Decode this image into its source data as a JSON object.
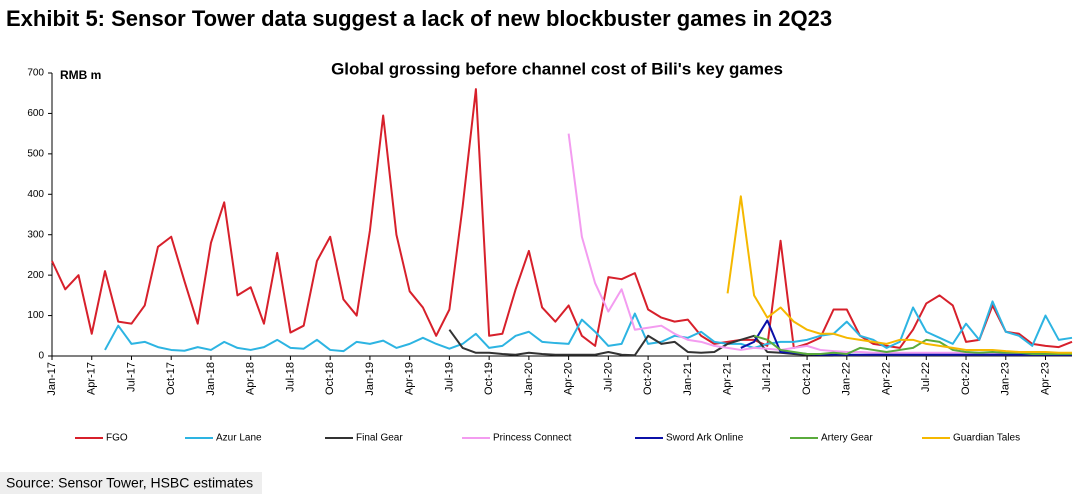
{
  "exhibit_title": "Exhibit 5: Sensor Tower data suggest a lack of new blockbuster games in 2Q23",
  "source": "Source: Sensor Tower, HSBC estimates",
  "chart_data": {
    "type": "line",
    "title": "Global grossing before channel cost  of Bili's key games",
    "y_label": "RMB m",
    "ylim": [
      0,
      700
    ],
    "yticks": [
      0,
      100,
      200,
      300,
      400,
      500,
      600,
      700
    ],
    "grid": false,
    "categories": [
      "Jan-17",
      null,
      null,
      "Apr-17",
      null,
      null,
      "Jul-17",
      null,
      null,
      "Oct-17",
      null,
      null,
      "Jan-18",
      null,
      null,
      "Apr-18",
      null,
      null,
      "Jul-18",
      null,
      null,
      "Oct-18",
      null,
      null,
      "Jan-19",
      null,
      null,
      "Apr-19",
      null,
      null,
      "Jul-19",
      null,
      null,
      "Oct-19",
      null,
      null,
      "Jan-20",
      null,
      null,
      "Apr-20",
      null,
      null,
      "Jul-20",
      null,
      null,
      "Oct-20",
      null,
      null,
      "Jan-21",
      null,
      null,
      "Apr-21",
      null,
      null,
      "Jul-21",
      null,
      null,
      "Oct-21",
      null,
      null,
      "Jan-22",
      null,
      null,
      "Apr-22",
      null,
      null,
      "Jul-22",
      null,
      null,
      "Oct-22",
      null,
      null,
      "Jan-23",
      null,
      null,
      "Apr-23",
      null,
      null
    ],
    "series": [
      {
        "name": "FGO",
        "color": "#d7202b",
        "values": [
          235,
          165,
          200,
          55,
          210,
          85,
          80,
          125,
          270,
          295,
          185,
          80,
          280,
          380,
          150,
          170,
          80,
          255,
          58,
          75,
          235,
          295,
          140,
          100,
          310,
          595,
          300,
          160,
          120,
          50,
          115,
          370,
          660,
          50,
          55,
          165,
          260,
          120,
          85,
          125,
          50,
          25,
          195,
          190,
          205,
          115,
          95,
          85,
          90,
          50,
          30,
          35,
          40,
          40,
          25,
          285,
          20,
          30,
          45,
          115,
          115,
          50,
          30,
          25,
          20,
          65,
          130,
          150,
          125,
          35,
          40,
          125,
          60,
          55,
          30,
          25,
          22,
          35
        ]
      },
      {
        "name": "Azur Lane",
        "color": "#2db4e2",
        "values": [
          null,
          null,
          null,
          null,
          15,
          75,
          30,
          35,
          22,
          15,
          13,
          22,
          15,
          35,
          20,
          15,
          22,
          40,
          20,
          18,
          40,
          15,
          12,
          35,
          30,
          38,
          20,
          30,
          45,
          30,
          18,
          30,
          55,
          20,
          25,
          50,
          60,
          35,
          32,
          30,
          90,
          60,
          25,
          30,
          105,
          30,
          35,
          50,
          45,
          60,
          35,
          30,
          30,
          20,
          30,
          35,
          35,
          40,
          50,
          55,
          85,
          50,
          40,
          20,
          35,
          120,
          60,
          45,
          30,
          80,
          40,
          135,
          60,
          50,
          25,
          100,
          40,
          45
        ]
      },
      {
        "name": "Final Gear",
        "color": "#333333",
        "values": [
          null,
          null,
          null,
          null,
          null,
          null,
          null,
          null,
          null,
          null,
          null,
          null,
          null,
          null,
          null,
          null,
          null,
          null,
          null,
          null,
          null,
          null,
          null,
          null,
          null,
          null,
          null,
          null,
          null,
          null,
          65,
          20,
          8,
          8,
          5,
          3,
          8,
          5,
          3,
          3,
          3,
          3,
          10,
          3,
          2,
          50,
          30,
          35,
          10,
          8,
          10,
          30,
          40,
          50,
          10,
          8,
          5,
          3,
          5,
          2,
          2,
          2,
          2,
          2,
          2,
          2,
          2,
          2,
          2,
          2,
          2,
          2,
          2,
          2,
          2,
          2,
          2,
          2
        ]
      },
      {
        "name": "Princess Connect",
        "color": "#f39cf0",
        "values": [
          null,
          null,
          null,
          null,
          null,
          null,
          null,
          null,
          null,
          null,
          null,
          null,
          null,
          null,
          null,
          null,
          null,
          null,
          null,
          null,
          null,
          null,
          null,
          null,
          null,
          null,
          null,
          null,
          null,
          null,
          null,
          null,
          null,
          null,
          null,
          null,
          null,
          null,
          null,
          550,
          295,
          180,
          110,
          165,
          65,
          70,
          75,
          55,
          40,
          35,
          25,
          20,
          15,
          20,
          18,
          15,
          20,
          25,
          15,
          12,
          10,
          10,
          8,
          8,
          8,
          8,
          8,
          8,
          8,
          8,
          8,
          8,
          6,
          6,
          6,
          6,
          5,
          5
        ]
      },
      {
        "name": "Sword Ark Online",
        "color": "#0b10a8",
        "values": [
          null,
          null,
          null,
          null,
          null,
          null,
          null,
          null,
          null,
          null,
          null,
          null,
          null,
          null,
          null,
          null,
          null,
          null,
          null,
          null,
          null,
          null,
          null,
          null,
          null,
          null,
          null,
          null,
          null,
          null,
          null,
          null,
          null,
          null,
          null,
          null,
          null,
          null,
          null,
          null,
          null,
          null,
          null,
          null,
          null,
          null,
          null,
          null,
          null,
          null,
          null,
          null,
          20,
          35,
          88,
          10,
          8,
          5,
          3,
          3,
          3,
          3,
          3,
          3,
          3,
          3,
          3,
          3,
          3,
          3,
          3,
          3,
          3,
          3,
          3,
          3,
          3,
          3
        ]
      },
      {
        "name": "Artery Gear",
        "color": "#5aab3c",
        "values": [
          null,
          null,
          null,
          null,
          null,
          null,
          null,
          null,
          null,
          null,
          null,
          null,
          null,
          null,
          null,
          null,
          null,
          null,
          null,
          null,
          null,
          null,
          null,
          null,
          null,
          null,
          null,
          null,
          null,
          null,
          null,
          null,
          null,
          null,
          null,
          null,
          null,
          null,
          null,
          null,
          null,
          null,
          null,
          null,
          null,
          null,
          null,
          null,
          null,
          null,
          null,
          null,
          null,
          50,
          40,
          15,
          10,
          5,
          5,
          8,
          5,
          20,
          15,
          10,
          15,
          20,
          40,
          35,
          15,
          10,
          8,
          10,
          8,
          8,
          5,
          5,
          5,
          5
        ]
      },
      {
        "name": "Guardian Tales",
        "color": "#f5b800",
        "values": [
          null,
          null,
          null,
          null,
          null,
          null,
          null,
          null,
          null,
          null,
          null,
          null,
          null,
          null,
          null,
          null,
          null,
          null,
          null,
          null,
          null,
          null,
          null,
          null,
          null,
          null,
          null,
          null,
          null,
          null,
          null,
          null,
          null,
          null,
          null,
          null,
          null,
          null,
          null,
          null,
          null,
          null,
          null,
          null,
          null,
          null,
          null,
          null,
          null,
          null,
          null,
          155,
          395,
          150,
          95,
          120,
          85,
          65,
          55,
          55,
          45,
          40,
          35,
          30,
          40,
          40,
          30,
          25,
          20,
          15,
          15,
          15,
          12,
          10,
          10,
          10,
          8,
          8
        ]
      }
    ]
  }
}
